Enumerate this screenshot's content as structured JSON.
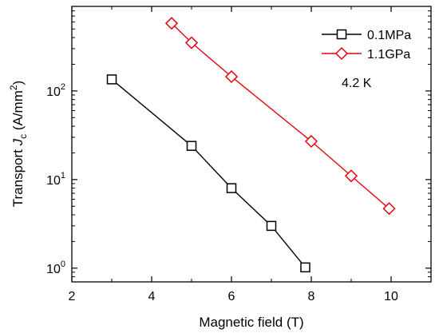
{
  "chart_data": {
    "type": "scatter",
    "title": "",
    "xlabel": "Magnetic field (T)",
    "ylabel": {
      "prefix": "Transport ",
      "symbol": "J",
      "subscript": "c",
      "suffix": " (A/mm",
      "superscript": "2",
      "close": ")"
    },
    "x_scale": "linear",
    "y_scale": "log",
    "xlim": [
      2,
      11
    ],
    "ylim": [
      0.7,
      900
    ],
    "x_ticks": [
      {
        "value": 2,
        "label": "2"
      },
      {
        "value": 4,
        "label": "4"
      },
      {
        "value": 6,
        "label": "6"
      },
      {
        "value": 8,
        "label": "8"
      },
      {
        "value": 10,
        "label": "10"
      }
    ],
    "y_ticks": [
      {
        "value": 1,
        "base": "10",
        "exp": "0"
      },
      {
        "value": 10,
        "base": "10",
        "exp": "1"
      },
      {
        "value": 100,
        "base": "10",
        "exp": "2"
      }
    ],
    "grid": false,
    "legend_position": "top-right",
    "annotation": "4.2 K",
    "series": [
      {
        "name": "0.1MPa",
        "color": "#000000",
        "marker": "square",
        "x": [
          3.0,
          5.0,
          6.0,
          7.0,
          7.85
        ],
        "y": [
          135,
          24,
          8,
          3,
          1.02
        ]
      },
      {
        "name": "1.1GPa",
        "color": "#e8000b",
        "marker": "diamond",
        "x": [
          4.5,
          5.0,
          6.0,
          8.0,
          9.0,
          9.95
        ],
        "y": [
          580,
          350,
          145,
          27,
          11,
          4.7
        ]
      }
    ]
  }
}
